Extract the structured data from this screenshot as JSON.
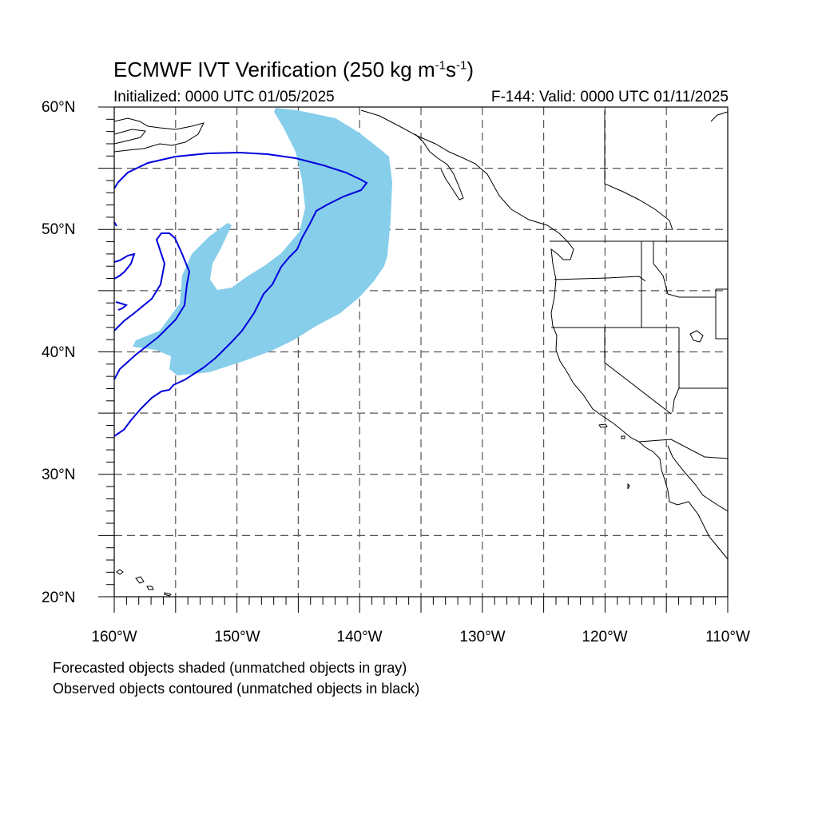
{
  "title": {
    "main": "ECMWF IVT Verification (250 kg m",
    "sup1": "-1",
    "mid": "s",
    "sup2": "-1",
    "end": ")"
  },
  "subtitle": {
    "left": "Initialized: 0000 UTC 01/05/2025",
    "right": "F-144: Valid: 0000 UTC 01/11/2025"
  },
  "axes": {
    "lat_labels": [
      "60°N",
      "50°N",
      "40°N",
      "30°N",
      "20°N"
    ],
    "lon_labels": [
      "160°W",
      "150°W",
      "140°W",
      "130°W",
      "120°W",
      "110°W"
    ],
    "lon_range": [
      -160,
      -110
    ],
    "lat_range": [
      20,
      60
    ],
    "grid": "dashed every 5°"
  },
  "legend": {
    "line1": "Forecasted objects shaded (unmatched objects in gray)",
    "line2": "Observed objects contoured (unmatched objects in black)"
  },
  "colors": {
    "forecast_shade": "#87ceeb",
    "observed_contour": "#0000dd",
    "coastline": "#000000",
    "grid": "#555555"
  }
}
